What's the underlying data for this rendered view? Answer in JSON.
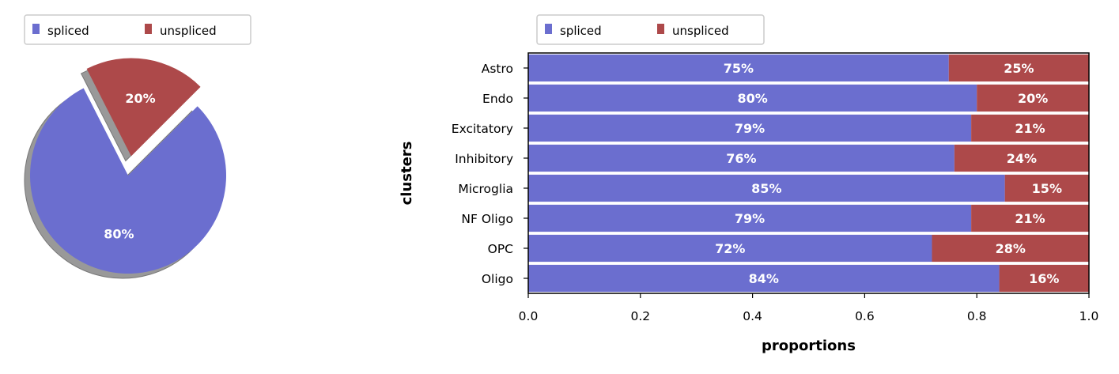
{
  "colors": {
    "spliced": "#6b6ecf",
    "unspliced": "#ad494a",
    "shadow": "#999999",
    "axis": "#000000",
    "label_text": "#ffffff"
  },
  "chart_data": [
    {
      "type": "pie",
      "title": "",
      "legend": {
        "placement": "top-left",
        "entries": [
          "spliced",
          "unspliced"
        ]
      },
      "series": [
        {
          "name": "spliced",
          "value": 0.8,
          "label": "80%"
        },
        {
          "name": "unspliced",
          "value": 0.2,
          "label": "20%"
        }
      ],
      "explode": [
        0,
        0.2
      ],
      "shadow": true
    },
    {
      "type": "bar",
      "orientation": "horizontal",
      "stacked": true,
      "title": "",
      "xlabel": "proportions",
      "ylabel": "clusters",
      "xlim": [
        0,
        1
      ],
      "xticks": [
        "0.0",
        "0.2",
        "0.4",
        "0.6",
        "0.8",
        "1.0"
      ],
      "grid": false,
      "legend": {
        "placement": "top-left",
        "entries": [
          "spliced",
          "unspliced"
        ]
      },
      "categories": [
        "Astro",
        "Endo",
        "Excitatory",
        "Inhibitory",
        "Microglia",
        "NF Oligo",
        "OPC",
        "Oligo"
      ],
      "series": [
        {
          "name": "spliced",
          "values": [
            0.75,
            0.8,
            0.79,
            0.76,
            0.85,
            0.79,
            0.72,
            0.84
          ],
          "labels": [
            "75%",
            "80%",
            "79%",
            "76%",
            "85%",
            "79%",
            "72%",
            "84%"
          ]
        },
        {
          "name": "unspliced",
          "values": [
            0.25,
            0.2,
            0.21,
            0.24,
            0.15,
            0.21,
            0.28,
            0.16
          ],
          "labels": [
            "25%",
            "20%",
            "21%",
            "24%",
            "15%",
            "21%",
            "28%",
            "16%"
          ]
        }
      ]
    }
  ]
}
